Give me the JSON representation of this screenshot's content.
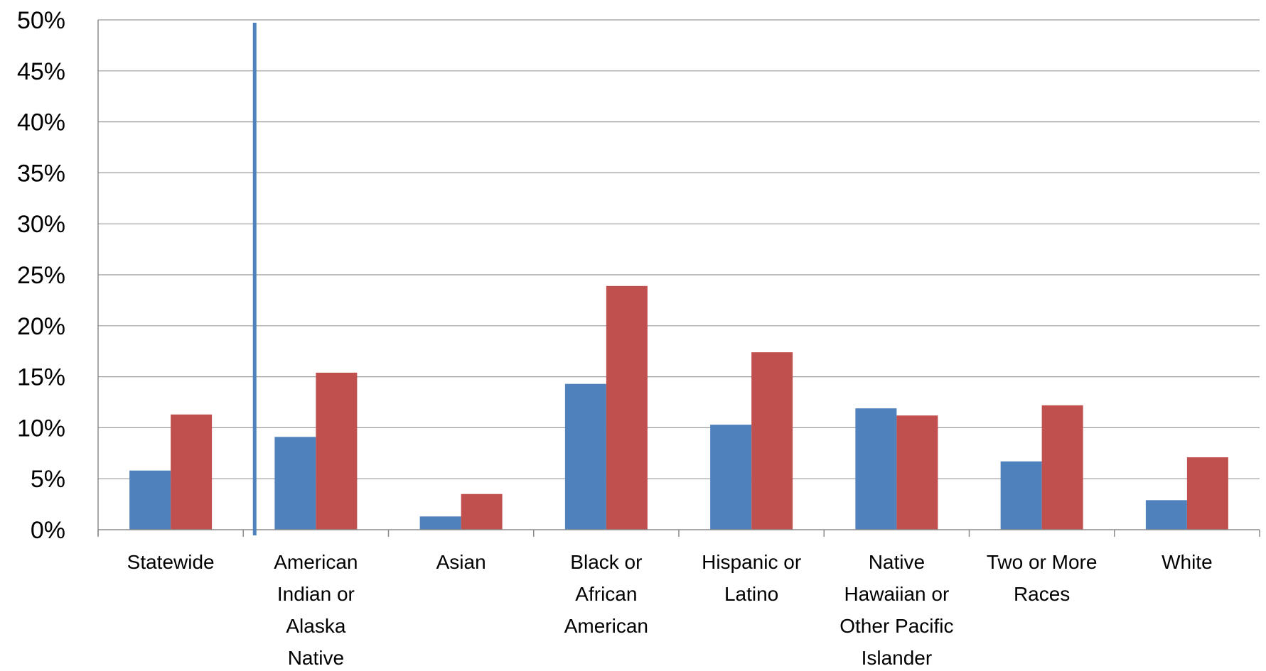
{
  "chart_data": {
    "type": "bar",
    "categories": [
      [
        "Statewide"
      ],
      [
        "American",
        "Indian or",
        "Alaska",
        "Native"
      ],
      [
        "Asian"
      ],
      [
        "Black or",
        "African",
        "American"
      ],
      [
        "Hispanic or",
        "Latino"
      ],
      [
        "Native",
        "Hawaiian or",
        "Other Pacific",
        "Islander"
      ],
      [
        "Two or More",
        "Races"
      ],
      [
        "White"
      ]
    ],
    "series": [
      {
        "color": "#4f81bd",
        "values": [
          5.8,
          9.1,
          1.3,
          14.3,
          10.3,
          11.9,
          6.7,
          2.9
        ]
      },
      {
        "color": "#c0504d",
        "values": [
          11.3,
          15.4,
          3.5,
          23.9,
          17.4,
          11.2,
          12.2,
          7.1
        ]
      }
    ],
    "ylim": [
      0,
      50
    ],
    "ytick_step": 5,
    "ytick_format": "%",
    "grid": true,
    "divider": {
      "after_category": 0,
      "color": "#4f81bd"
    },
    "title": "",
    "xlabel": "",
    "ylabel": ""
  }
}
